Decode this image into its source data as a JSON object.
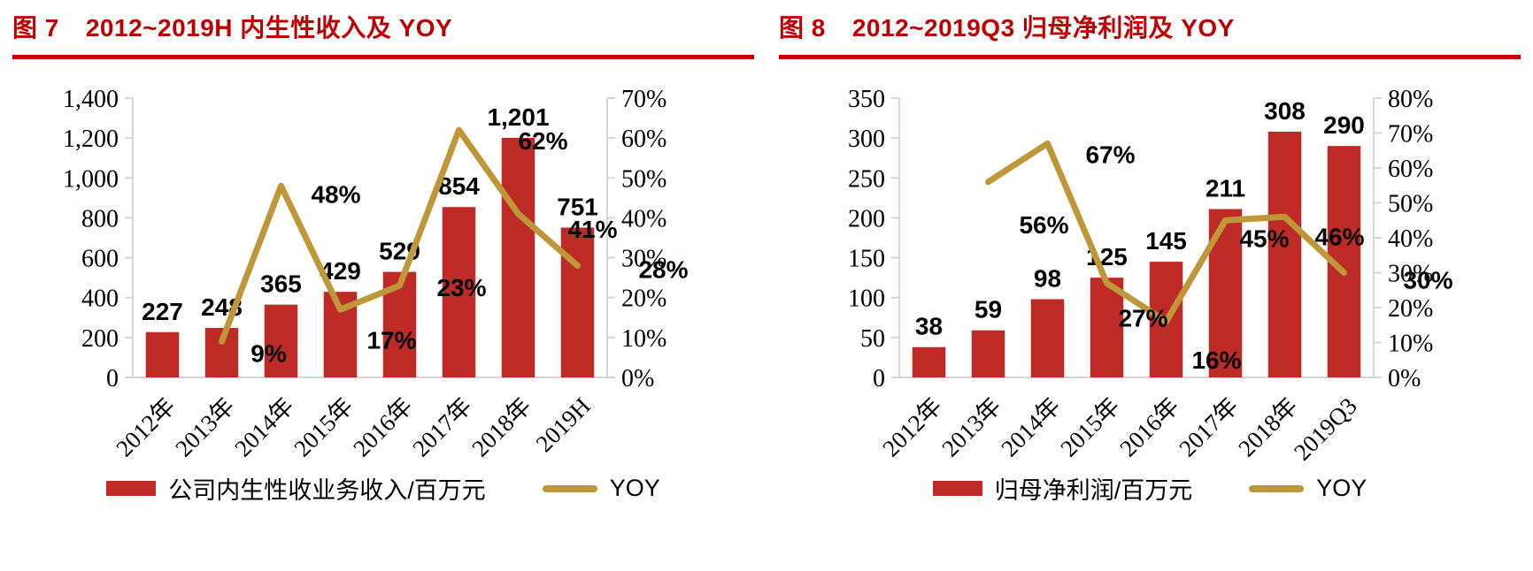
{
  "page": {
    "background": "#ffffff"
  },
  "charts": [
    {
      "figure_label": "图 7",
      "title": "2012~2019H 内生性收入及 YOY",
      "accent_color": "#c00000",
      "bar_color": "#be2b26",
      "line_color": "#bf9638",
      "axis_color": "#d6d6d6",
      "legend": [
        {
          "swatch": "bar",
          "label": "公司内生性收业务收入/百万元"
        },
        {
          "swatch": "line",
          "label": "YOY"
        }
      ],
      "chart_data": {
        "type": "bar+line",
        "categories": [
          "2012年",
          "2013年",
          "2014年",
          "2015年",
          "2016年",
          "2017年",
          "2018年",
          "2019H"
        ],
        "series": [
          {
            "name": "公司内生性收业务收入/百万元",
            "type": "bar",
            "axis": "left",
            "values": [
              227,
              248,
              365,
              429,
              529,
              854,
              1201,
              751
            ],
            "labels": [
              "227",
              "248",
              "365",
              "429",
              "529",
              "854",
              "1,201",
              "751"
            ]
          },
          {
            "name": "YOY",
            "type": "line",
            "axis": "right",
            "values": [
              null,
              9,
              48,
              17,
              23,
              62,
              41,
              28
            ],
            "labels": [
              null,
              "9%",
              "48%",
              "17%",
              "23%",
              "62%",
              "41%",
              "28%"
            ]
          }
        ],
        "left_axis": {
          "min": 0,
          "max": 1400,
          "step": 200,
          "tick_labels": [
            "1,400",
            "1,200",
            "1,000",
            "800",
            "600",
            "400",
            "200",
            "0"
          ]
        },
        "right_axis": {
          "min": 0,
          "max": 70,
          "step": 10,
          "unit": "%",
          "tick_labels": [
            "70%",
            "60%",
            "50%",
            "40%",
            "30%",
            "20%",
            "10%",
            "0%"
          ]
        },
        "grid": false,
        "legend_position": "bottom",
        "line_label_offsets": [
          null,
          [
            53,
            23
          ],
          [
            62,
            19
          ],
          [
            58,
            44
          ],
          [
            70,
            12
          ],
          [
            95,
            22
          ],
          [
            84,
            27
          ],
          [
            97,
            14
          ]
        ]
      }
    },
    {
      "figure_label": "图 8",
      "title": "2012~2019Q3 归母净利润及 YOY",
      "accent_color": "#c00000",
      "bar_color": "#be2b26",
      "line_color": "#bf9638",
      "axis_color": "#d6d6d6",
      "legend": [
        {
          "swatch": "bar",
          "label": "归母净利润/百万元"
        },
        {
          "swatch": "line",
          "label": "YOY"
        }
      ],
      "chart_data": {
        "type": "bar+line",
        "categories": [
          "2012年",
          "2013年",
          "2014年",
          "2015年",
          "2016年",
          "2017年",
          "2018年",
          "2019Q3"
        ],
        "series": [
          {
            "name": "归母净利润/百万元",
            "type": "bar",
            "axis": "left",
            "values": [
              38,
              59,
              98,
              125,
              145,
              211,
              308,
              290
            ],
            "labels": [
              "38",
              "59",
              "98",
              "125",
              "145",
              "211",
              "308",
              "290"
            ]
          },
          {
            "name": "YOY",
            "type": "line",
            "axis": "right",
            "values": [
              null,
              56,
              67,
              27,
              16,
              45,
              46,
              30
            ],
            "labels": [
              null,
              "56%",
              "67%",
              "27%",
              "16%",
              "45%",
              "46%",
              "30%"
            ]
          }
        ],
        "left_axis": {
          "min": 0,
          "max": 350,
          "step": 50,
          "tick_labels": [
            "350",
            "300",
            "250",
            "200",
            "150",
            "100",
            "50",
            "0"
          ]
        },
        "right_axis": {
          "min": 0,
          "max": 80,
          "step": 10,
          "unit": "%",
          "tick_labels": [
            "80%",
            "70%",
            "60%",
            "50%",
            "40%",
            "30%",
            "20%",
            "10%",
            "0%"
          ]
        },
        "grid": false,
        "legend_position": "bottom",
        "line_label_offsets": [
          null,
          [
            63,
            58
          ],
          [
            71,
            22
          ],
          [
            41,
            49
          ],
          [
            57,
            53
          ],
          [
            44,
            30
          ],
          [
            62,
            32
          ],
          [
            95,
            18
          ]
        ]
      }
    }
  ]
}
